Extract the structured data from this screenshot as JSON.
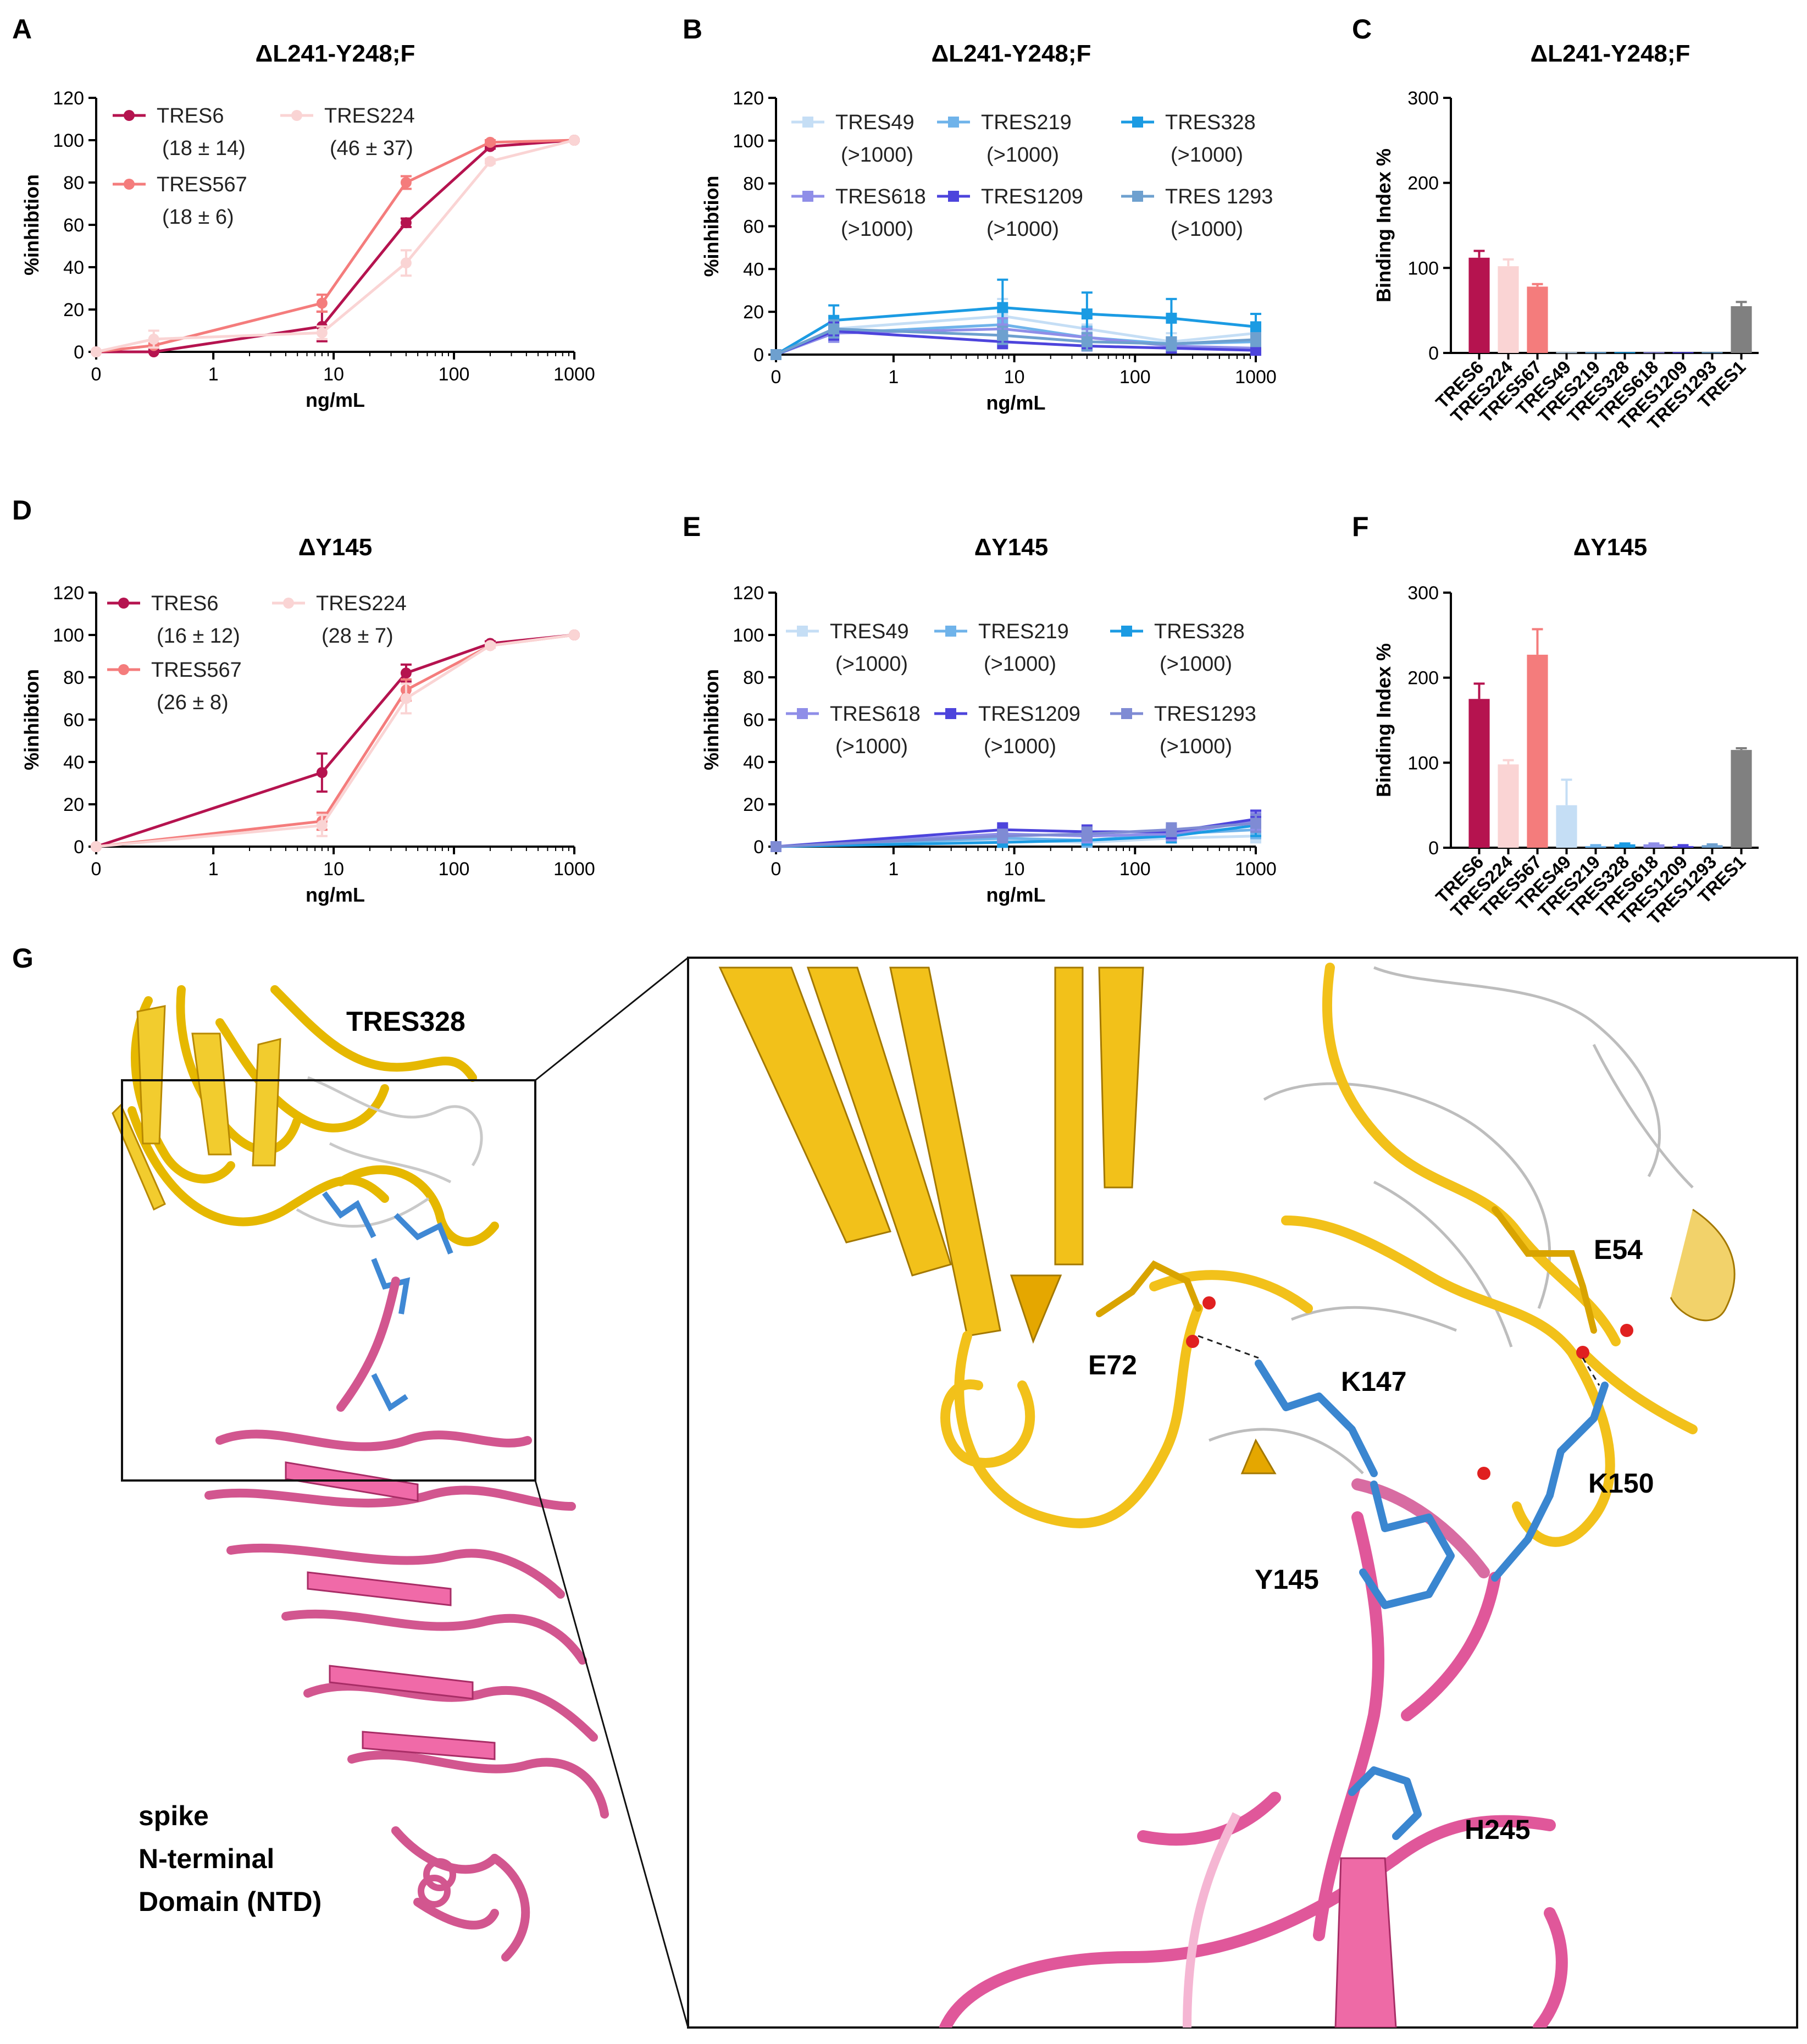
{
  "panels_text": {
    "A": "A",
    "B": "B",
    "C": "C",
    "D": "D",
    "E": "E",
    "F": "F",
    "G": "G"
  },
  "chart_data": [
    {
      "id": "A",
      "type": "line",
      "title": "ΔL241-Y248;F",
      "xlabel": "ng/mL",
      "ylabel": "%inhibtion",
      "xscale": "log-with-zero",
      "xticks": [
        "0",
        "1",
        "10",
        "100",
        "1000"
      ],
      "yticks": [
        "0",
        "20",
        "40",
        "60",
        "80",
        "100",
        "120"
      ],
      "ylim": [
        0,
        120
      ],
      "x": [
        0,
        0.32,
        8,
        40,
        200,
        1000
      ],
      "series": [
        {
          "name": "TRES6",
          "ic50": "(18 ± 14)",
          "color": "#b5134f",
          "values": [
            0,
            0,
            12,
            61,
            97,
            100
          ],
          "err": [
            0,
            1,
            7,
            2,
            1,
            0
          ]
        },
        {
          "name": "TRES567",
          "ic50": "(18 ± 6)",
          "color": "#f47c7c",
          "values": [
            0,
            3,
            23,
            80,
            99,
            100
          ],
          "err": [
            0,
            1,
            4,
            3,
            1,
            0
          ]
        },
        {
          "name": "TRES224",
          "ic50": "(46 ± 37)",
          "color": "#fad4d4",
          "values": [
            0,
            6,
            9,
            42,
            90,
            100
          ],
          "err": [
            0,
            4,
            3,
            6,
            1,
            0
          ]
        }
      ]
    },
    {
      "id": "B",
      "type": "line",
      "title": "ΔL241-Y248;F",
      "xlabel": "ng/mL",
      "ylabel": "%inhibtion",
      "xscale": "log-with-zero",
      "xticks": [
        "0",
        "1",
        "10",
        "100",
        "1000"
      ],
      "yticks": [
        "0",
        "20",
        "40",
        "60",
        "80",
        "100",
        "120"
      ],
      "ylim": [
        0,
        120
      ],
      "x": [
        0,
        0.32,
        8,
        40,
        200,
        1000
      ],
      "series": [
        {
          "name": "TRES49",
          "ic50": "(>1000)",
          "color": "#c5def5",
          "values": [
            0,
            12,
            18,
            12,
            6,
            10
          ],
          "err": [
            0,
            6,
            8,
            5,
            4,
            4
          ]
        },
        {
          "name": "TRES219",
          "ic50": "(>1000)",
          "color": "#6fb3ea",
          "values": [
            0,
            10,
            14,
            8,
            5,
            6
          ],
          "err": [
            0,
            4,
            6,
            5,
            3,
            3
          ]
        },
        {
          "name": "TRES328",
          "ic50": "(>1000)",
          "color": "#1b9be3",
          "values": [
            0,
            16,
            22,
            19,
            17,
            13
          ],
          "err": [
            0,
            7,
            13,
            10,
            9,
            6
          ]
        },
        {
          "name": "TRES618",
          "ic50": "(>1000)",
          "color": "#8f8ee8",
          "values": [
            0,
            10,
            12,
            8,
            4,
            3
          ],
          "err": [
            0,
            4,
            5,
            4,
            3,
            2
          ]
        },
        {
          "name": "TRES1209",
          "ic50": "(>1000)",
          "color": "#4d44dc",
          "values": [
            0,
            11,
            6,
            4,
            3,
            2
          ],
          "err": [
            0,
            4,
            3,
            2,
            2,
            2
          ]
        },
        {
          "name": "TRES 1293",
          "ic50": "(>1000)",
          "color": "#6ea0cf",
          "values": [
            0,
            12,
            9,
            6,
            5,
            7
          ],
          "err": [
            0,
            4,
            4,
            4,
            3,
            3
          ]
        }
      ]
    },
    {
      "id": "C",
      "type": "bar",
      "title": "ΔL241-Y248;F",
      "ylabel": "Binding  Index %",
      "yticks": [
        "0",
        "100",
        "200",
        "300"
      ],
      "ylim": [
        0,
        300
      ],
      "categories": [
        "TRES6",
        "TRES224",
        "TRES567",
        "TRES49",
        "TRES219",
        "TRES328",
        "TRES618",
        "TRES1209",
        "TRES1293",
        "TRES1"
      ],
      "values": [
        112,
        102,
        78,
        1,
        1,
        1,
        1,
        1,
        1,
        55
      ],
      "err": [
        8,
        8,
        3,
        0,
        0,
        0,
        0,
        0,
        0,
        5
      ],
      "colors": [
        "#b5134f",
        "#fad4d4",
        "#f47c7c",
        "#c5def5",
        "#6fb3ea",
        "#1b9be3",
        "#8f8ee8",
        "#4d44dc",
        "#6ea0cf",
        "#808080"
      ]
    },
    {
      "id": "D",
      "type": "line",
      "title": "ΔY145",
      "xlabel": "ng/mL",
      "ylabel": "%inhibtion",
      "xscale": "log-with-zero",
      "xticks": [
        "0",
        "1",
        "10",
        "100",
        "1000"
      ],
      "yticks": [
        "0",
        "20",
        "40",
        "60",
        "80",
        "100",
        "120"
      ],
      "ylim": [
        0,
        120
      ],
      "x": [
        0,
        8,
        40,
        200,
        1000
      ],
      "series": [
        {
          "name": "TRES6",
          "ic50": "(16 ± 12)",
          "color": "#b5134f",
          "values": [
            0,
            35,
            82,
            96,
            100
          ],
          "err": [
            0,
            9,
            4,
            1,
            0
          ]
        },
        {
          "name": "TRES567",
          "ic50": "(26 ± 8)",
          "color": "#f47c7c",
          "values": [
            0,
            12,
            74,
            95,
            100
          ],
          "err": [
            0,
            4,
            5,
            1,
            0
          ]
        },
        {
          "name": "TRES224",
          "ic50": "(28 ± 7)",
          "color": "#fad4d4",
          "values": [
            0,
            10,
            70,
            95,
            100
          ],
          "err": [
            0,
            5,
            7,
            1,
            0
          ]
        }
      ]
    },
    {
      "id": "E",
      "type": "line",
      "title": "ΔY145",
      "xlabel": "ng/mL",
      "ylabel": "%inhibtion",
      "xscale": "log-with-zero",
      "xticks": [
        "0",
        "1",
        "10",
        "100",
        "1000"
      ],
      "yticks": [
        "0",
        "20",
        "40",
        "60",
        "80",
        "100",
        "120"
      ],
      "ylim": [
        0,
        120
      ],
      "x": [
        0,
        8,
        40,
        200,
        1000
      ],
      "series": [
        {
          "name": "TRES49",
          "ic50": "(>1000)",
          "color": "#c5def5",
          "values": [
            0,
            3,
            2,
            4,
            5
          ],
          "err": [
            0,
            2,
            2,
            2,
            3
          ]
        },
        {
          "name": "TRES219",
          "ic50": "(>1000)",
          "color": "#6fb3ea",
          "values": [
            0,
            4,
            3,
            6,
            8
          ],
          "err": [
            0,
            2,
            3,
            3,
            4
          ]
        },
        {
          "name": "TRES328",
          "ic50": "(>1000)",
          "color": "#1b9be3",
          "values": [
            0,
            2,
            3,
            5,
            10
          ],
          "err": [
            0,
            2,
            2,
            3,
            5
          ]
        },
        {
          "name": "TRES618",
          "ic50": "(>1000)",
          "color": "#8f8ee8",
          "values": [
            0,
            6,
            5,
            6,
            12
          ],
          "err": [
            0,
            3,
            3,
            3,
            4
          ]
        },
        {
          "name": "TRES1209",
          "ic50": "(>1000)",
          "color": "#4d44dc",
          "values": [
            0,
            8,
            7,
            7,
            13
          ],
          "err": [
            0,
            3,
            3,
            3,
            4
          ]
        },
        {
          "name": "TRES1293",
          "ic50": "(>1000)",
          "color": "#7f8bd4",
          "values": [
            0,
            5,
            6,
            8,
            11
          ],
          "err": [
            0,
            3,
            3,
            3,
            4
          ]
        }
      ]
    },
    {
      "id": "F",
      "type": "bar",
      "title": "ΔY145",
      "ylabel": "Binding  Index %",
      "yticks": [
        "0",
        "100",
        "200",
        "300"
      ],
      "ylim": [
        0,
        300
      ],
      "categories": [
        "TRES6",
        "TRES224",
        "TRES567",
        "TRES49",
        "TRES219",
        "TRES328",
        "TRES618",
        "TRES1209",
        "TRES1293",
        "TRES1"
      ],
      "values": [
        175,
        98,
        227,
        50,
        2,
        4,
        4,
        2,
        3,
        115
      ],
      "err": [
        18,
        5,
        30,
        30,
        1,
        1,
        1,
        1,
        1,
        2
      ],
      "colors": [
        "#b5134f",
        "#fad4d4",
        "#f47c7c",
        "#c5def5",
        "#6fb3ea",
        "#1b9be3",
        "#8f8ee8",
        "#4d44dc",
        "#6ea0cf",
        "#808080"
      ]
    }
  ],
  "structure": {
    "antibody_label": "TRES328",
    "ntd_label_1": "spike",
    "ntd_label_2": "N-terminal",
    "ntd_label_3": "Domain (NTD)",
    "residues": {
      "e72": "E72",
      "k147": "K147",
      "e54": "E54",
      "k150": "K150",
      "y145": "Y145",
      "h245": "H245"
    }
  }
}
